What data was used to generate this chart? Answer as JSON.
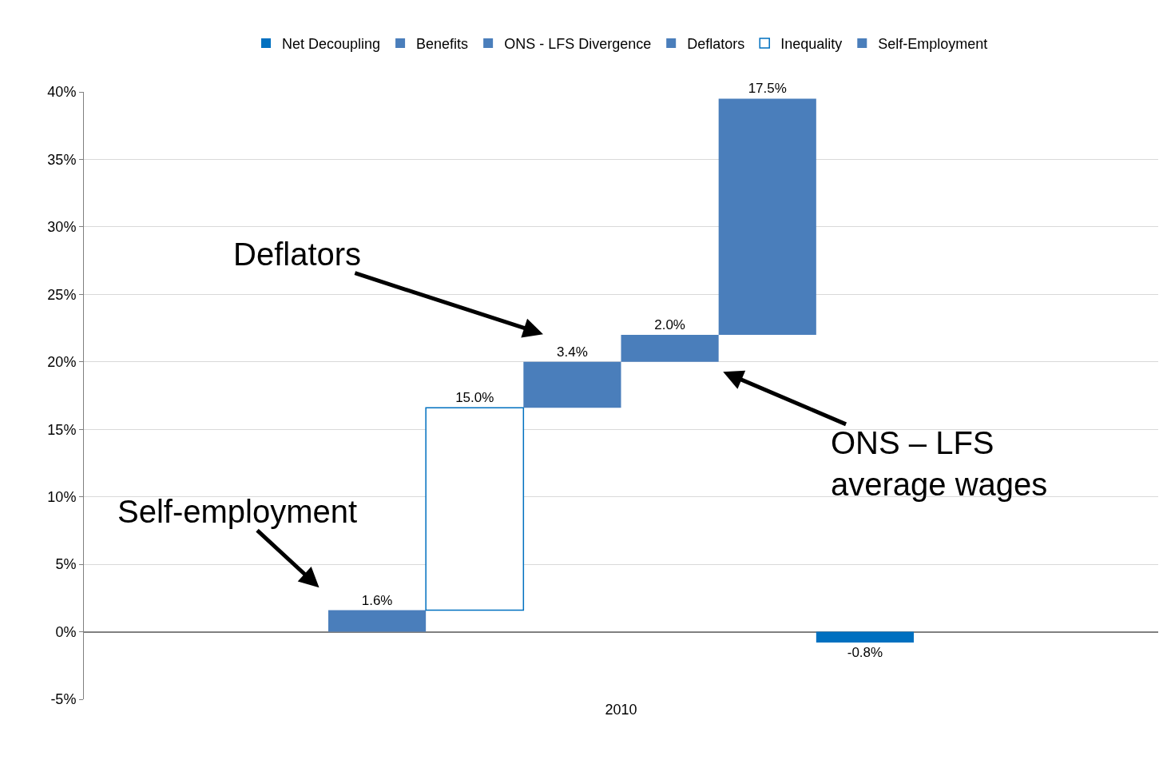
{
  "chart_data": {
    "type": "bar",
    "categories": [
      "2010"
    ],
    "series": [
      {
        "name": "Self-Employment",
        "color": "#4a7ebb",
        "values": [
          1.6
        ],
        "base": [
          0
        ],
        "value_labels": [
          "1.6%"
        ]
      },
      {
        "name": "Inequality",
        "color": "#0070c0",
        "values": [
          15.0
        ],
        "base": [
          1.6
        ],
        "value_labels": [
          "15.0%"
        ]
      },
      {
        "name": "Deflators",
        "color": "#4a7ebb",
        "values": [
          3.4
        ],
        "base": [
          16.6
        ],
        "value_labels": [
          "3.4%"
        ]
      },
      {
        "name": "ONS - LFS Divergence",
        "color": "#4a7ebb",
        "values": [
          2.0
        ],
        "base": [
          20.0
        ],
        "value_labels": [
          "2.0%"
        ]
      },
      {
        "name": "Benefits",
        "color": "#4a7ebb",
        "values": [
          17.5
        ],
        "base": [
          22.0
        ],
        "value_labels": [
          "17.5%"
        ]
      },
      {
        "name": "Net Decoupling",
        "color": "#0070c0",
        "values": [
          -0.8
        ],
        "base": [
          0
        ],
        "value_labels": [
          "-0.8%"
        ]
      }
    ],
    "ylim": [
      -5,
      40
    ],
    "yticks": [
      {
        "value": -5,
        "label": "-5%"
      },
      {
        "value": 0,
        "label": "0%"
      },
      {
        "value": 5,
        "label": "5%"
      },
      {
        "value": 10,
        "label": "10%"
      },
      {
        "value": 15,
        "label": "15%"
      },
      {
        "value": 20,
        "label": "20%"
      },
      {
        "value": 25,
        "label": "25%"
      },
      {
        "value": 30,
        "label": "30%"
      },
      {
        "value": 35,
        "label": "35%"
      },
      {
        "value": 40,
        "label": "40%"
      }
    ],
    "grid": "y",
    "legend": "top",
    "annotations": [
      "Self-employment",
      "Deflators",
      "ONS – LFS\naverage wages"
    ]
  }
}
